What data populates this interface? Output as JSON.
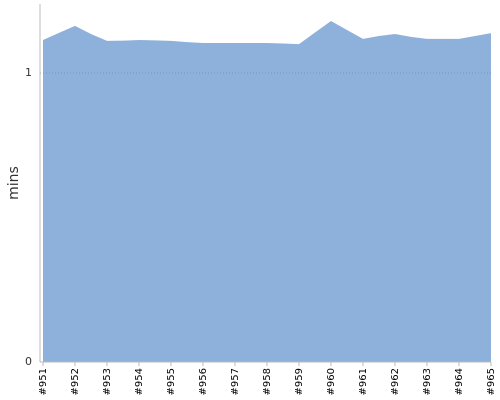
{
  "chart_data": {
    "type": "area",
    "y_label": "mins",
    "categories": [
      "#951",
      null,
      "#952",
      null,
      "#953",
      null,
      "#954",
      null,
      "#955",
      null,
      "#956",
      null,
      "#957",
      null,
      "#958",
      null,
      "#959",
      null,
      "#960",
      null,
      "#961",
      null,
      "#962",
      null,
      "#963",
      null,
      "#964",
      null,
      "#965"
    ],
    "values": [
      1.114,
      1.139,
      1.163,
      1.135,
      1.111,
      1.112,
      1.114,
      1.113,
      1.111,
      1.107,
      1.104,
      1.104,
      1.104,
      1.104,
      1.104,
      1.102,
      1.1,
      1.14,
      1.18,
      1.149,
      1.118,
      1.128,
      1.135,
      1.125,
      1.118,
      1.118,
      1.118,
      1.128,
      1.138
    ],
    "color": "#8eb1db",
    "ylim": [
      0,
      1.24
    ],
    "yticks": [
      0,
      1
    ],
    "grid": true
  }
}
